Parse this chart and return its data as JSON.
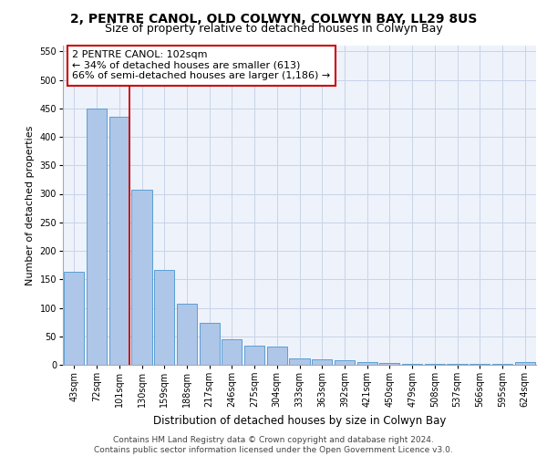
{
  "title1": "2, PENTRE CANOL, OLD COLWYN, COLWYN BAY, LL29 8US",
  "title2": "Size of property relative to detached houses in Colwyn Bay",
  "xlabel": "Distribution of detached houses by size in Colwyn Bay",
  "ylabel": "Number of detached properties",
  "categories": [
    "43sqm",
    "72sqm",
    "101sqm",
    "130sqm",
    "159sqm",
    "188sqm",
    "217sqm",
    "246sqm",
    "275sqm",
    "304sqm",
    "333sqm",
    "363sqm",
    "392sqm",
    "421sqm",
    "450sqm",
    "479sqm",
    "508sqm",
    "537sqm",
    "566sqm",
    "595sqm",
    "624sqm"
  ],
  "values": [
    163,
    450,
    435,
    307,
    167,
    107,
    74,
    45,
    33,
    32,
    11,
    9,
    8,
    5,
    4,
    2,
    2,
    2,
    2,
    2,
    5
  ],
  "bar_color": "#aec6e8",
  "bar_edge_color": "#5a9fd4",
  "grid_color": "#c8d4e8",
  "background_color": "#eef2fa",
  "annotation_box_text": "2 PENTRE CANOL: 102sqm\n← 34% of detached houses are smaller (613)\n66% of semi-detached houses are larger (1,186) →",
  "vline_x_index": 2,
  "vline_color": "#cc0000",
  "ylim": [
    0,
    560
  ],
  "yticks": [
    0,
    50,
    100,
    150,
    200,
    250,
    300,
    350,
    400,
    450,
    500,
    550
  ],
  "footnote": "Contains HM Land Registry data © Crown copyright and database right 2024.\nContains public sector information licensed under the Open Government Licence v3.0.",
  "title1_fontsize": 10,
  "title2_fontsize": 9,
  "xlabel_fontsize": 8.5,
  "ylabel_fontsize": 8,
  "tick_fontsize": 7,
  "annot_fontsize": 8,
  "footnote_fontsize": 6.5
}
